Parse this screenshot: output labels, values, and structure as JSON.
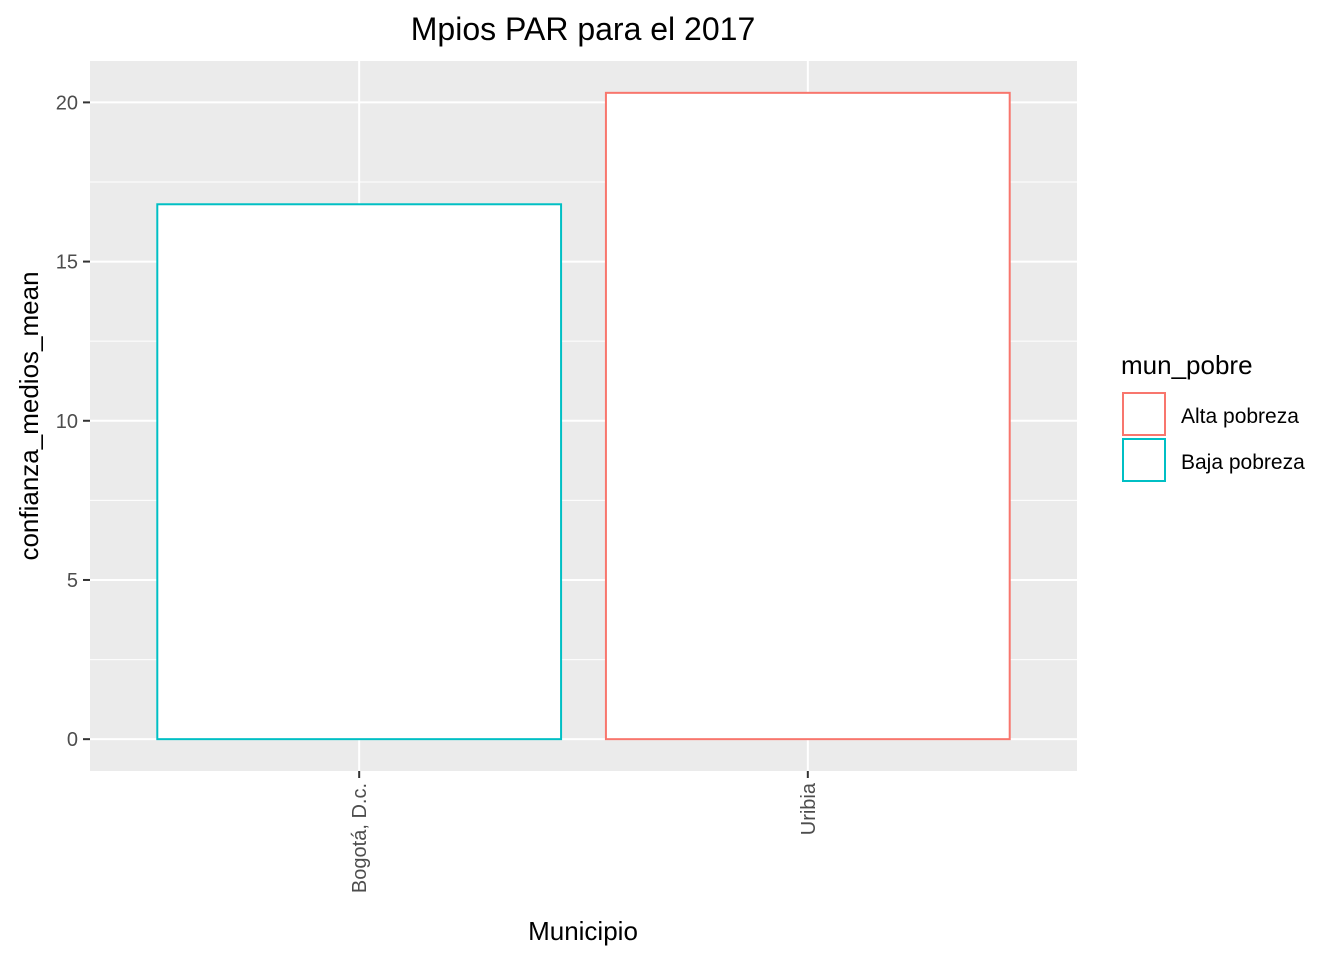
{
  "chart_data": {
    "type": "bar",
    "title": "Mpios PAR para el 2017",
    "xlabel": "Municipio",
    "ylabel": "confianza_medios_mean",
    "categories": [
      "Bogotá, D.c.",
      "Uribia"
    ],
    "values": [
      16.8,
      20.3
    ],
    "groups": [
      "Baja pobreza",
      "Alta pobreza"
    ],
    "ylim": [
      -1,
      21.3
    ],
    "yticks": [
      0,
      5,
      10,
      15,
      20
    ],
    "grid": true,
    "legend": {
      "title": "mun_pobre",
      "position": "right",
      "entries": [
        {
          "label": "Alta pobreza",
          "color": "#F8766D"
        },
        {
          "label": "Baja pobreza",
          "color": "#00BFC4"
        }
      ]
    },
    "colors": {
      "Alta pobreza": "#F8766D",
      "Baja pobreza": "#00BFC4",
      "panel_background": "#EBEBEB",
      "grid_line": "#FFFFFF",
      "bar_fill": "#FFFFFF"
    }
  }
}
